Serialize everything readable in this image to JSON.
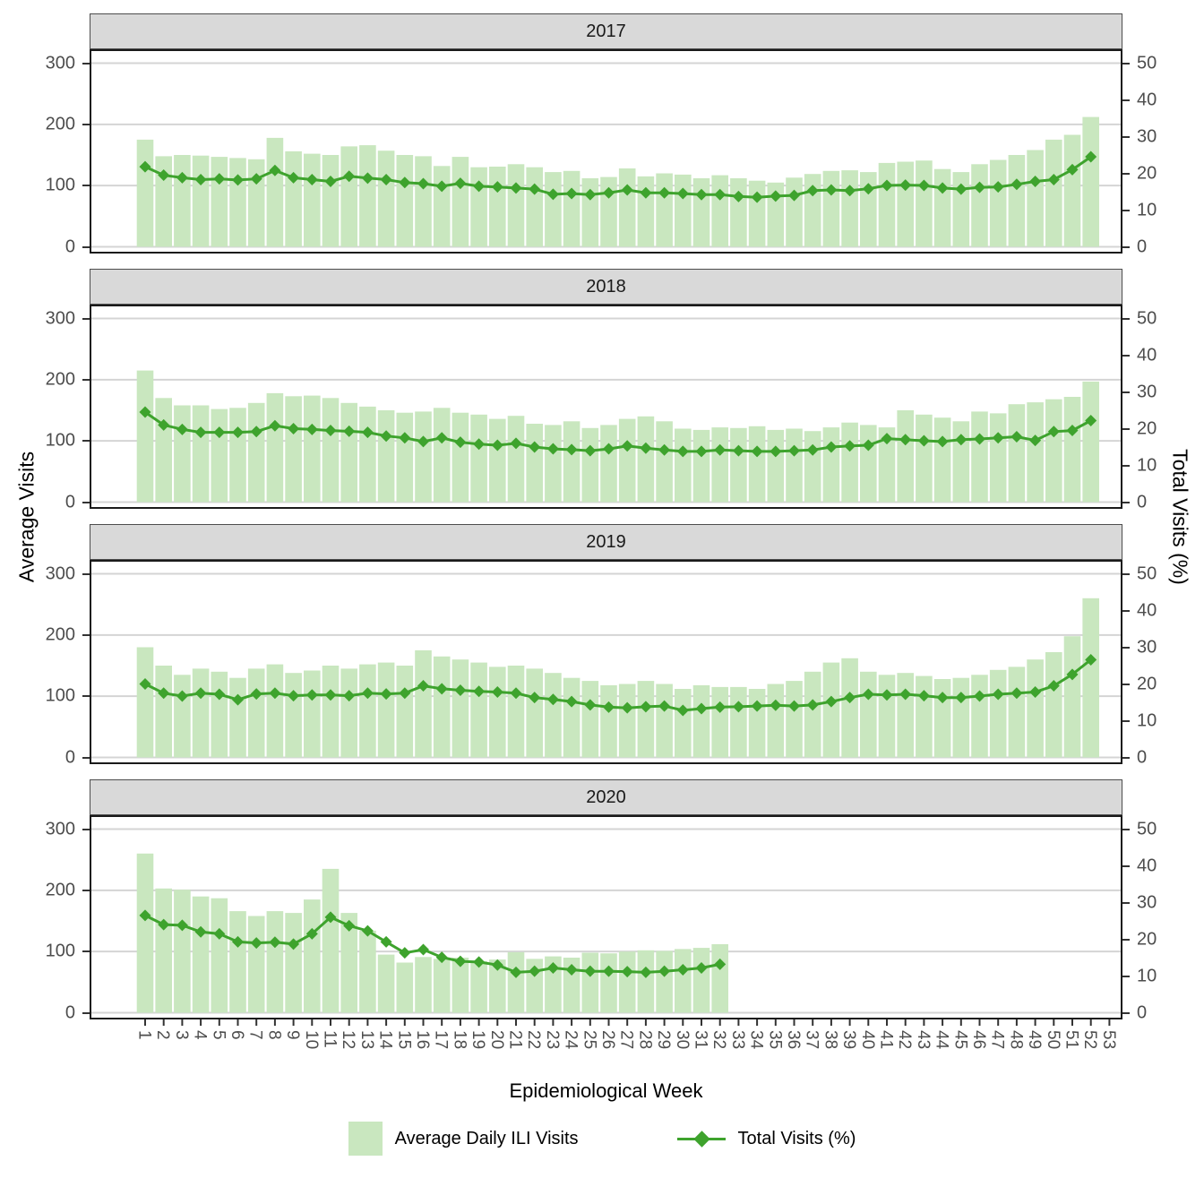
{
  "chart_data": {
    "type": "bar+line",
    "facet_variable": "year",
    "xlabel": "Epidemiological Week",
    "ylabel_left": "Average Visits",
    "ylabel_right": "Total Visits (%)",
    "x_ticks": [
      "1",
      "2",
      "3",
      "4",
      "5",
      "6",
      "7",
      "8",
      "9",
      "10",
      "11",
      "12",
      "13",
      "14",
      "15",
      "16",
      "17",
      "18",
      "19",
      "20",
      "21",
      "22",
      "23",
      "24",
      "25",
      "26",
      "27",
      "28",
      "29",
      "30",
      "31",
      "32",
      "33",
      "34",
      "35",
      "36",
      "37",
      "38",
      "39",
      "40",
      "41",
      "42",
      "43",
      "44",
      "45",
      "46",
      "47",
      "48",
      "49",
      "50",
      "51",
      "52",
      "53"
    ],
    "left_axis": {
      "ticks": [
        0,
        100,
        200,
        300
      ],
      "range": [
        0,
        300
      ]
    },
    "right_axis": {
      "ticks": [
        0,
        10,
        20,
        30,
        40,
        50
      ],
      "range": [
        0,
        50
      ]
    },
    "grid": "horizontal-major-only",
    "legend": {
      "bar_label": "Average Daily ILI Visits",
      "line_label": "Total Visits (%)"
    },
    "colors": {
      "bar": "#C9E7BF",
      "line": "#3EA32D",
      "strip_bg": "#D9D9D9",
      "strip_text": "#1A1A1A",
      "gridline": "#D4D4D4",
      "panel_border": "#1A1A1A",
      "axis_text": "#4D4D4D",
      "tick_mark": "#333333"
    },
    "facets": [
      {
        "year": "2017",
        "bars": [
          175,
          148,
          150,
          149,
          147,
          145,
          143,
          178,
          156,
          152,
          150,
          164,
          166,
          157,
          150,
          148,
          132,
          147,
          130,
          131,
          135,
          130,
          122,
          124,
          112,
          114,
          128,
          115,
          120,
          118,
          112,
          117,
          112,
          108,
          105,
          113,
          119,
          124,
          125,
          122,
          137,
          139,
          141,
          127,
          122,
          135,
          142,
          150,
          158,
          175,
          183,
          212
        ],
        "line_pct": [
          21.8,
          19.5,
          18.8,
          18.3,
          18.5,
          18.2,
          18.5,
          20.8,
          18.8,
          18.3,
          17.8,
          19.2,
          18.7,
          18.3,
          17.5,
          17.2,
          16.5,
          17.3,
          16.5,
          16.3,
          16.0,
          15.7,
          14.3,
          14.5,
          14.2,
          14.7,
          15.5,
          14.7,
          14.7,
          14.5,
          14.2,
          14.2,
          13.7,
          13.5,
          13.8,
          14.0,
          15.3,
          15.5,
          15.3,
          15.8,
          16.7,
          16.8,
          16.7,
          16.0,
          15.7,
          16.2,
          16.3,
          17.0,
          17.8,
          18.3,
          21.0,
          24.5
        ]
      },
      {
        "year": "2018",
        "bars": [
          215,
          170,
          158,
          158,
          152,
          154,
          162,
          178,
          173,
          174,
          170,
          162,
          156,
          150,
          146,
          148,
          154,
          146,
          143,
          136,
          141,
          128,
          126,
          132,
          121,
          126,
          136,
          140,
          132,
          120,
          118,
          122,
          121,
          124,
          118,
          120,
          116,
          122,
          130,
          126,
          122,
          150,
          143,
          138,
          132,
          148,
          145,
          160,
          163,
          168,
          172,
          197
        ],
        "line_pct": [
          24.5,
          21.0,
          19.8,
          19.0,
          19.0,
          19.0,
          19.2,
          20.8,
          20.0,
          19.8,
          19.5,
          19.3,
          19.0,
          18.0,
          17.5,
          16.5,
          17.5,
          16.3,
          15.8,
          15.5,
          16.0,
          15.0,
          14.5,
          14.3,
          14.0,
          14.5,
          15.3,
          14.7,
          14.2,
          13.8,
          13.8,
          14.2,
          14.0,
          13.8,
          13.8,
          14.0,
          14.2,
          15.0,
          15.3,
          15.5,
          17.3,
          17.0,
          16.7,
          16.5,
          17.0,
          17.2,
          17.5,
          17.8,
          16.8,
          19.2,
          19.5,
          22.2
        ]
      },
      {
        "year": "2019",
        "bars": [
          180,
          150,
          135,
          145,
          140,
          130,
          145,
          152,
          138,
          142,
          150,
          145,
          152,
          155,
          150,
          175,
          165,
          160,
          155,
          148,
          150,
          145,
          138,
          130,
          125,
          118,
          120,
          125,
          120,
          112,
          118,
          115,
          115,
          112,
          120,
          125,
          140,
          155,
          162,
          140,
          135,
          138,
          133,
          128,
          130,
          135,
          143,
          148,
          160,
          172,
          198,
          260
        ],
        "line_pct": [
          20.0,
          17.5,
          16.7,
          17.5,
          17.2,
          15.7,
          17.3,
          17.5,
          16.8,
          17.0,
          17.0,
          16.8,
          17.5,
          17.3,
          17.5,
          19.5,
          18.7,
          18.3,
          18.0,
          17.8,
          17.5,
          16.3,
          15.8,
          15.2,
          14.3,
          13.7,
          13.5,
          13.8,
          14.0,
          12.8,
          13.3,
          13.7,
          13.8,
          14.0,
          14.2,
          14.0,
          14.3,
          15.2,
          16.3,
          17.2,
          17.0,
          17.2,
          16.8,
          16.3,
          16.3,
          16.7,
          17.2,
          17.5,
          17.8,
          19.5,
          22.6,
          26.6
        ]
      },
      {
        "year": "2020",
        "bars": [
          260,
          203,
          201,
          190,
          187,
          166,
          158,
          166,
          163,
          185,
          235,
          163,
          134,
          95,
          82,
          91,
          88,
          90,
          84,
          87,
          99,
          88,
          92,
          90,
          98,
          97,
          100,
          102,
          101,
          104,
          106,
          112
        ],
        "line_pct": [
          26.5,
          24.0,
          23.8,
          22.0,
          21.5,
          19.3,
          19.0,
          19.2,
          18.7,
          21.5,
          26.0,
          23.7,
          22.3,
          19.3,
          16.3,
          17.2,
          15.1,
          14.0,
          13.8,
          13.0,
          11.0,
          11.3,
          12.2,
          11.7,
          11.3,
          11.3,
          11.2,
          11.0,
          11.3,
          11.7,
          12.2,
          13.2
        ]
      }
    ]
  }
}
